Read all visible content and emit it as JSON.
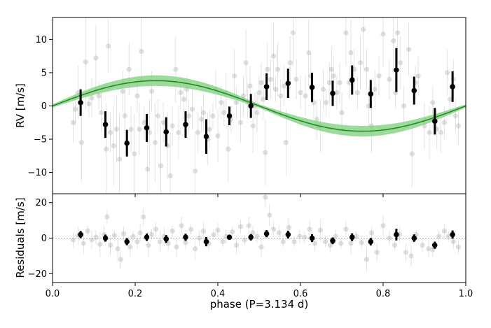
{
  "chart_data": [
    {
      "type": "scatter",
      "ylabel": "RV [m/s]",
      "xlim": [
        0.0,
        1.0
      ],
      "ylim": [
        -13.2,
        13.3
      ],
      "x_ticks": [
        0.0,
        0.2,
        0.4,
        0.6,
        0.8,
        1.0
      ],
      "y_ticks": [
        -10,
        -5,
        0,
        5,
        10
      ],
      "y_tick_labels": [
        "−10",
        "−5",
        "0",
        "5",
        "10"
      ],
      "grid": false,
      "model_color": "#228B22",
      "band_color": "#7ccf7c",
      "binned_color": "#000000",
      "raw_color": "#b0b0b0",
      "model": {
        "amplitude": 3.8,
        "phase_of_zero_crossing": 0.0
      },
      "binned": {
        "x": [
          0.068,
          0.128,
          0.18,
          0.228,
          0.275,
          0.322,
          0.372,
          0.428,
          0.48,
          0.518,
          0.57,
          0.628,
          0.678,
          0.725,
          0.77,
          0.832,
          0.875,
          0.925,
          0.968
        ],
        "y": [
          0.5,
          -2.8,
          -5.6,
          -3.3,
          -3.9,
          -2.8,
          -4.6,
          -1.5,
          0.0,
          2.9,
          3.4,
          2.8,
          1.9,
          3.9,
          1.8,
          5.4,
          2.3,
          -2.3,
          2.9
        ],
        "err": [
          2.0,
          2.0,
          2.0,
          2.1,
          2.2,
          2.0,
          2.6,
          1.4,
          1.8,
          2.0,
          2.2,
          2.2,
          1.9,
          2.2,
          2.1,
          3.3,
          2.1,
          2.0,
          2.3
        ]
      },
      "raw": {
        "x": [
          0.05,
          0.055,
          0.062,
          0.07,
          0.08,
          0.088,
          0.095,
          0.105,
          0.112,
          0.118,
          0.13,
          0.135,
          0.14,
          0.148,
          0.155,
          0.162,
          0.17,
          0.175,
          0.185,
          0.19,
          0.198,
          0.205,
          0.21,
          0.215,
          0.222,
          0.23,
          0.235,
          0.24,
          0.248,
          0.255,
          0.262,
          0.268,
          0.278,
          0.285,
          0.29,
          0.298,
          0.305,
          0.31,
          0.318,
          0.325,
          0.33,
          0.338,
          0.345,
          0.352,
          0.36,
          0.365,
          0.375,
          0.38,
          0.388,
          0.395,
          0.4,
          0.408,
          0.415,
          0.42,
          0.425,
          0.432,
          0.44,
          0.445,
          0.455,
          0.462,
          0.468,
          0.472,
          0.478,
          0.485,
          0.49,
          0.495,
          0.5,
          0.505,
          0.51,
          0.515,
          0.52,
          0.528,
          0.535,
          0.54,
          0.545,
          0.552,
          0.56,
          0.565,
          0.575,
          0.582,
          0.59,
          0.6,
          0.612,
          0.62,
          0.625,
          0.632,
          0.64,
          0.648,
          0.655,
          0.662,
          0.67,
          0.675,
          0.68,
          0.688,
          0.695,
          0.7,
          0.71,
          0.718,
          0.722,
          0.73,
          0.738,
          0.745,
          0.752,
          0.76,
          0.765,
          0.772,
          0.78,
          0.79,
          0.8,
          0.815,
          0.825,
          0.83,
          0.835,
          0.842,
          0.85,
          0.862,
          0.87,
          0.878,
          0.885,
          0.9,
          0.912,
          0.92,
          0.93,
          0.94,
          0.948,
          0.955,
          0.962,
          0.97,
          0.975,
          0.982
        ],
        "y": [
          -2.5,
          -0.5,
          2.0,
          -5.5,
          6.6,
          0.3,
          1.2,
          7.2,
          1.5,
          -1.0,
          -6.5,
          9.0,
          -4.0,
          -6.0,
          -3.5,
          -8.0,
          2.2,
          -1.5,
          5.5,
          -3.5,
          -7.2,
          1.5,
          -3.5,
          8.2,
          -2.5,
          -9.5,
          -4.0,
          2.2,
          -5.5,
          -1.5,
          -9.0,
          -2.5,
          -6.0,
          -10.5,
          -3.0,
          5.5,
          -4.0,
          2.0,
          1.0,
          2.5,
          -1.5,
          -0.5,
          -9.8,
          -4.0,
          -2.0,
          -1.0,
          -5.0,
          -3.5,
          -1.5,
          2.5,
          -4.5,
          0.5,
          -1.0,
          2.0,
          -6.5,
          -2.0,
          4.5,
          0.5,
          -2.5,
          1.5,
          6.5,
          0.5,
          3.0,
          -3.0,
          0.0,
          -1.0,
          2.0,
          3.5,
          1.0,
          -7.0,
          5.5,
          4.0,
          7.5,
          2.5,
          5.5,
          1.5,
          3.0,
          -5.5,
          6.5,
          11.0,
          4.0,
          2.0,
          1.5,
          8.0,
          4.5,
          0.5,
          -2.0,
          -3.0,
          2.5,
          0.5,
          3.5,
          5.5,
          4.5,
          2.0,
          3.5,
          -1.0,
          11.0,
          3.5,
          8.0,
          5.5,
          2.0,
          6.5,
          11.5,
          5.5,
          0.0,
          -3.0,
          2.5,
          4.5,
          10.8,
          4.0,
          9.8,
          2.0,
          11.0,
          6.5,
          0.0,
          8.5,
          -7.2,
          3.5,
          4.5,
          -3.0,
          -4.0,
          0.5,
          -3.5,
          -4.0,
          -2.5,
          5.0,
          1.0,
          4.0,
          -1.5,
          -3.0
        ],
        "err": [
          3.0,
          2.5,
          4.0,
          6.0,
          7.0,
          2.0,
          3.0,
          5.0,
          2.0,
          3.0,
          7.0,
          4.0,
          3.0,
          6.0,
          5.0,
          7.0,
          3.0,
          4.0,
          4.0,
          3.5,
          6.0,
          2.5,
          4.0,
          5.0,
          2.5,
          7.0,
          5.0,
          3.0,
          6.0,
          2.5,
          6.0,
          3.0,
          5.0,
          6.5,
          3.0,
          5.0,
          4.0,
          2.5,
          3.0,
          2.0,
          2.5,
          3.0,
          6.0,
          3.0,
          2.0,
          3.0,
          4.0,
          3.0,
          2.0,
          3.0,
          4.0,
          2.5,
          2.0,
          3.0,
          5.0,
          2.0,
          4.0,
          2.5,
          3.0,
          3.0,
          5.0,
          2.5,
          3.0,
          4.0,
          2.0,
          3.0,
          2.5,
          3.0,
          3.0,
          5.0,
          4.0,
          3.0,
          5.0,
          2.0,
          4.0,
          2.5,
          3.0,
          5.0,
          4.0,
          5.0,
          3.0,
          2.5,
          3.0,
          5.0,
          3.5,
          2.5,
          3.0,
          4.0,
          3.0,
          2.0,
          3.0,
          3.5,
          3.0,
          2.5,
          3.0,
          3.0,
          5.0,
          2.5,
          5.0,
          3.0,
          2.5,
          4.0,
          6.0,
          3.0,
          3.0,
          4.0,
          3.0,
          3.0,
          5.0,
          3.0,
          5.0,
          2.5,
          5.0,
          4.0,
          3.0,
          4.0,
          5.0,
          2.5,
          3.0,
          3.5,
          4.0,
          2.5,
          3.0,
          3.0,
          2.5,
          3.5,
          2.5,
          3.0,
          2.5,
          3.0
        ]
      }
    },
    {
      "type": "scatter",
      "xlabel": "phase (P=3.134 d)",
      "ylabel": "Residuals [m/s]",
      "xlim": [
        0.0,
        1.0
      ],
      "ylim": [
        -25,
        25
      ],
      "x_ticks": [
        0.0,
        0.2,
        0.4,
        0.6,
        0.8,
        1.0
      ],
      "x_tick_labels": [
        "0.0",
        "0.2",
        "0.4",
        "0.6",
        "0.8",
        "1.0"
      ],
      "y_ticks": [
        -20,
        0,
        20
      ],
      "y_tick_labels": [
        "−20",
        "0",
        "20"
      ],
      "grid": false,
      "zero_line": true,
      "binned": {
        "x": [
          0.068,
          0.128,
          0.18,
          0.228,
          0.275,
          0.322,
          0.372,
          0.428,
          0.48,
          0.518,
          0.57,
          0.628,
          0.678,
          0.725,
          0.77,
          0.832,
          0.875,
          0.925,
          0.968
        ],
        "y": [
          2.0,
          0.0,
          -2.0,
          0.5,
          -0.5,
          0.5,
          -2.0,
          0.5,
          0.5,
          2.5,
          2.0,
          0.0,
          -1.5,
          0.5,
          -2.0,
          2.0,
          0.0,
          -4.0,
          2.0
        ],
        "err": [
          2.0,
          2.0,
          2.0,
          2.1,
          2.2,
          2.0,
          2.6,
          1.4,
          1.8,
          2.0,
          2.2,
          2.2,
          1.9,
          2.2,
          2.1,
          3.3,
          2.1,
          2.0,
          2.3
        ]
      },
      "raw": {
        "x": [
          0.05,
          0.062,
          0.075,
          0.085,
          0.095,
          0.105,
          0.115,
          0.125,
          0.132,
          0.14,
          0.15,
          0.158,
          0.165,
          0.172,
          0.188,
          0.195,
          0.205,
          0.212,
          0.22,
          0.232,
          0.24,
          0.25,
          0.26,
          0.27,
          0.28,
          0.29,
          0.3,
          0.312,
          0.322,
          0.335,
          0.345,
          0.355,
          0.365,
          0.378,
          0.39,
          0.4,
          0.412,
          0.42,
          0.435,
          0.445,
          0.455,
          0.465,
          0.475,
          0.485,
          0.495,
          0.505,
          0.515,
          0.525,
          0.535,
          0.548,
          0.558,
          0.572,
          0.585,
          0.598,
          0.61,
          0.622,
          0.635,
          0.648,
          0.66,
          0.672,
          0.685,
          0.698,
          0.71,
          0.722,
          0.735,
          0.748,
          0.76,
          0.772,
          0.785,
          0.8,
          0.815,
          0.828,
          0.84,
          0.855,
          0.868,
          0.88,
          0.895,
          0.91,
          0.92,
          0.935,
          0.948,
          0.958,
          0.97,
          0.982
        ],
        "y": [
          -1.0,
          1.5,
          -3.0,
          4.0,
          -1.0,
          0.5,
          -3.5,
          2.0,
          12.0,
          -4.0,
          1.5,
          -6.0,
          -12.0,
          2.5,
          -5.0,
          1.0,
          -2.0,
          3.0,
          12.0,
          -4.0,
          2.0,
          5.0,
          -2.0,
          1.0,
          -3.0,
          4.0,
          -5.0,
          7.0,
          -2.5,
          5.0,
          -6.0,
          0.0,
          4.0,
          -3.0,
          2.0,
          4.5,
          -2.0,
          1.0,
          3.5,
          -4.0,
          6.5,
          -1.0,
          7.0,
          3.0,
          1.0,
          -5.0,
          23.0,
          13.0,
          5.0,
          3.0,
          -2.0,
          6.0,
          -2.0,
          1.0,
          0.5,
          5.0,
          -3.0,
          4.5,
          -2.0,
          -4.0,
          1.0,
          -3.0,
          5.0,
          -3.0,
          1.0,
          -2.5,
          -12.0,
          3.0,
          -8.0,
          7.0,
          0.0,
          -4.0,
          2.0,
          -8.0,
          -10.0,
          2.0,
          -4.0,
          -6.0,
          -6.5,
          1.0,
          4.0,
          1.0,
          -2.0,
          -5.0
        ],
        "err": [
          4.0,
          5.0,
          6.0,
          3.0,
          5.0,
          4.0,
          7.0,
          5.0,
          4.0,
          6.0,
          3.0,
          7.0,
          5.0,
          4.0,
          6.0,
          3.0,
          4.0,
          5.0,
          5.0,
          7.0,
          3.0,
          4.0,
          6.0,
          5.0,
          4.0,
          3.0,
          6.0,
          5.0,
          4.0,
          3.0,
          6.0,
          4.0,
          5.0,
          4.0,
          3.0,
          4.0,
          3.0,
          4.0,
          3.0,
          5.0,
          4.0,
          3.0,
          5.0,
          4.0,
          3.0,
          6.0,
          6.0,
          6.0,
          5.0,
          4.0,
          3.0,
          5.0,
          3.0,
          4.0,
          3.0,
          5.0,
          4.0,
          6.0,
          3.0,
          4.0,
          4.0,
          3.0,
          5.0,
          6.0,
          3.0,
          4.0,
          7.0,
          3.0,
          5.0,
          6.0,
          4.0,
          3.0,
          4.0,
          5.0,
          6.0,
          3.0,
          4.0,
          5.0,
          4.0,
          3.0,
          4.0,
          3.0,
          4.0,
          4.0
        ]
      }
    }
  ]
}
